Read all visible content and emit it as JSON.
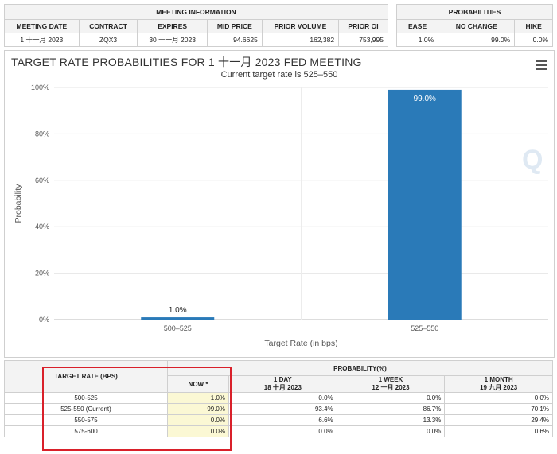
{
  "meeting_info": {
    "title": "MEETING INFORMATION",
    "headers": [
      "MEETING DATE",
      "CONTRACT",
      "EXPIRES",
      "MID PRICE",
      "PRIOR VOLUME",
      "PRIOR OI"
    ],
    "row": [
      "1 十一月 2023",
      "ZQX3",
      "30 十一月 2023",
      "94.6625",
      "162,382",
      "753,995"
    ]
  },
  "probabilities": {
    "title": "PROBABILITIES",
    "headers": [
      "EASE",
      "NO CHANGE",
      "HIKE"
    ],
    "row": [
      "1.0%",
      "99.0%",
      "0.0%"
    ]
  },
  "chart_panel": {
    "title": "TARGET RATE PROBABILITIES FOR 1 十一月 2023 FED MEETING",
    "subtitle": "Current target rate is 525–550",
    "menu_icon": "hamburger-menu-icon",
    "watermark": "Q"
  },
  "chart_data": {
    "type": "bar",
    "categories": [
      "500–525",
      "525–550"
    ],
    "values": [
      1.0,
      99.0
    ],
    "data_labels": [
      "1.0%",
      "99.0%"
    ],
    "xlabel": "Target Rate (in bps)",
    "ylabel": "Probability",
    "ylim": [
      0,
      100
    ],
    "yticks": [
      "0%",
      "20%",
      "40%",
      "60%",
      "80%",
      "100%"
    ],
    "bar_color": "#2a7ab8",
    "grid": true
  },
  "bottom_table": {
    "target_rate_header": "TARGET RATE (BPS)",
    "probability_header": "PROBABILITY(%)",
    "now_header": "NOW *",
    "col_headers": [
      {
        "line1": "1 DAY",
        "line2": "18 十月 2023"
      },
      {
        "line1": "1 WEEK",
        "line2": "12 十月 2023"
      },
      {
        "line1": "1 MONTH",
        "line2": "19 九月 2023"
      }
    ],
    "rows": [
      {
        "rate": "500-525",
        "now": "1.0%",
        "day": "0.0%",
        "week": "0.0%",
        "month": "0.0%"
      },
      {
        "rate": "525-550 (Current)",
        "now": "99.0%",
        "day": "93.4%",
        "week": "86.7%",
        "month": "70.1%"
      },
      {
        "rate": "550-575",
        "now": "0.0%",
        "day": "6.6%",
        "week": "13.3%",
        "month": "29.4%"
      },
      {
        "rate": "575-600",
        "now": "0.0%",
        "day": "0.0%",
        "week": "0.0%",
        "month": "0.6%"
      }
    ]
  }
}
